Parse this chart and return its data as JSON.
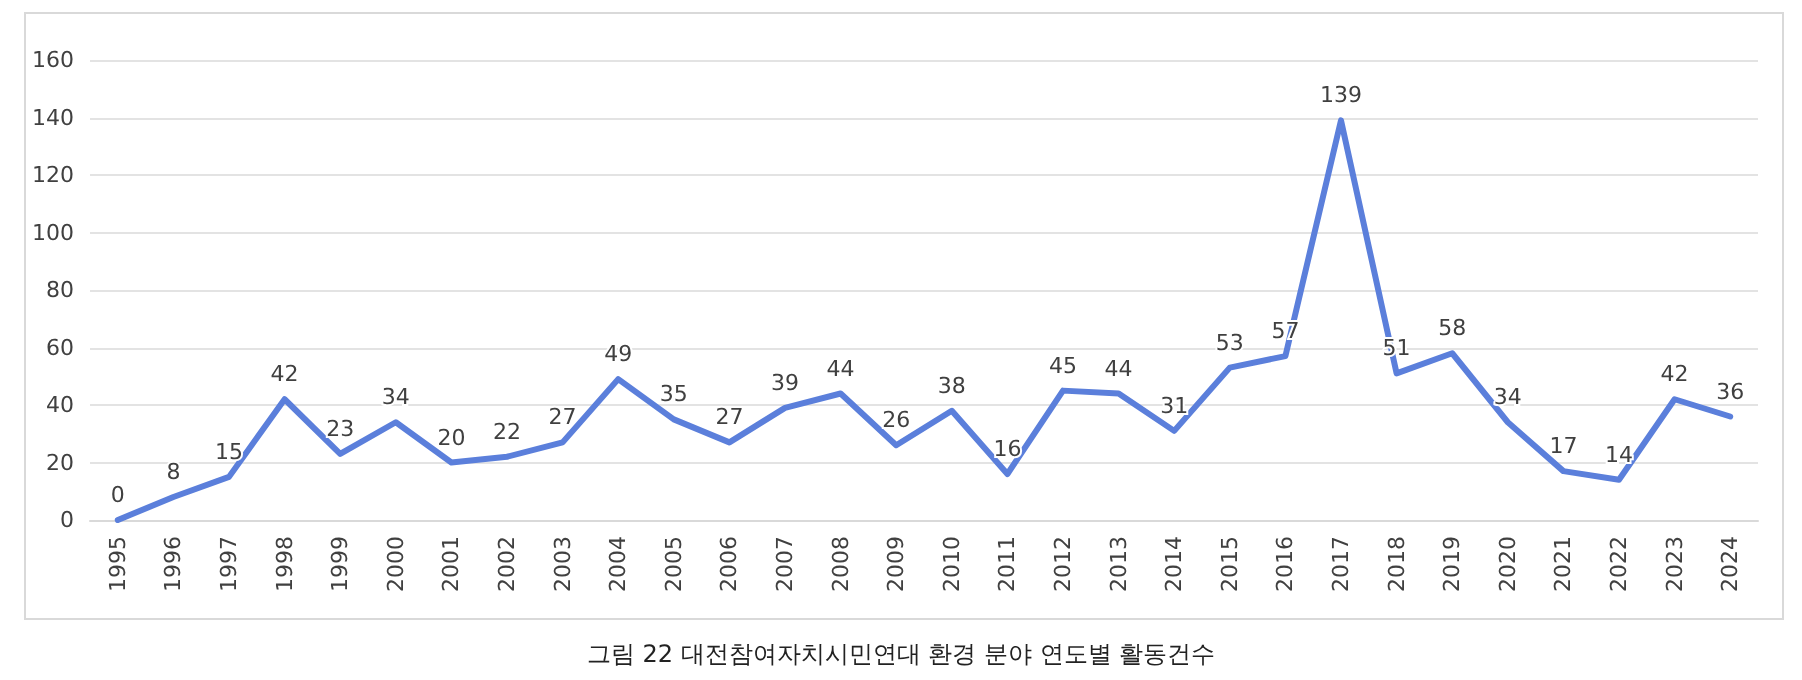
{
  "chart_data": {
    "type": "line",
    "title": "그림 22 대전참여자치시민연대 환경 분야 연도별 활동건수",
    "categories": [
      "1995",
      "1996",
      "1997",
      "1998",
      "1999",
      "2000",
      "2001",
      "2002",
      "2003",
      "2004",
      "2005",
      "2006",
      "2007",
      "2008",
      "2009",
      "2010",
      "2011",
      "2012",
      "2013",
      "2014",
      "2015",
      "2016",
      "2017",
      "2018",
      "2019",
      "2020",
      "2021",
      "2022",
      "2023",
      "2024"
    ],
    "series": [
      {
        "color": "#5b7fdb",
        "values": [
          0,
          8,
          15,
          42,
          23,
          34,
          20,
          22,
          27,
          49,
          35,
          27,
          39,
          44,
          26,
          38,
          16,
          45,
          44,
          31,
          53,
          57,
          139,
          51,
          58,
          34,
          17,
          14,
          42,
          36
        ]
      }
    ],
    "ylim": [
      0,
      160
    ],
    "yticks": [
      0,
      20,
      40,
      60,
      80,
      100,
      120,
      140,
      160
    ],
    "grid": "y",
    "data_labels": true,
    "marker": "none",
    "line_style": "solid"
  }
}
